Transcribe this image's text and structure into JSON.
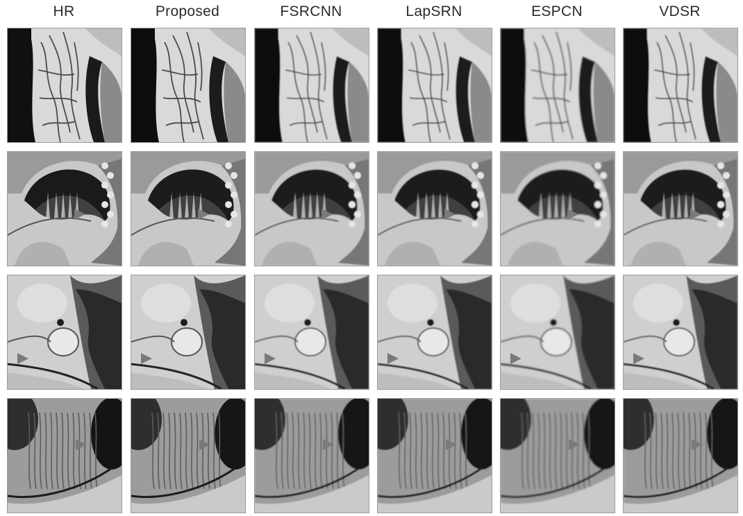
{
  "figure": {
    "columns": [
      {
        "label": "HR"
      },
      {
        "label": "Proposed"
      },
      {
        "label": "FSRCNN"
      },
      {
        "label": "LapSRN"
      },
      {
        "label": "ESPCN"
      },
      {
        "label": "VDSR"
      }
    ],
    "rows": [
      {
        "scene": "vessel-texture",
        "has_arrow": false
      },
      {
        "scene": "dark-arc",
        "has_arrow": true
      },
      {
        "scene": "bright-blob",
        "has_arrow": true
      },
      {
        "scene": "bone-texture",
        "has_arrow": true
      }
    ],
    "colors": {
      "arrow": "#7a7a7a",
      "border": "#9a9a9a",
      "header_text": "#2a2a2a"
    }
  }
}
